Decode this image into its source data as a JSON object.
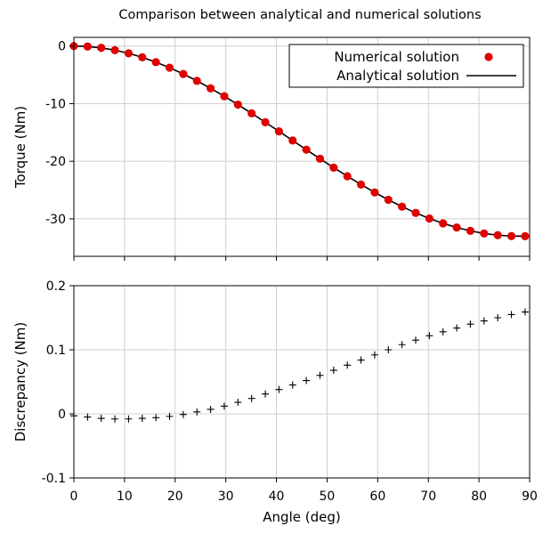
{
  "title": "Comparison between analytical and numerical solutions",
  "colors": {
    "numerical": "#e00000",
    "analytical": "#000000",
    "grid": "#d0d0d0"
  },
  "chart_data": [
    {
      "type": "line",
      "panel": "top",
      "title": "Comparison between analytical and numerical solutions",
      "xlabel": "",
      "ylabel": "Torque (Nm)",
      "xlim": [
        0,
        90
      ],
      "ylim": [
        -36.5,
        1.5
      ],
      "xticks": [
        0,
        10,
        20,
        30,
        40,
        50,
        60,
        70,
        80,
        90
      ],
      "yticks": [
        0,
        -10,
        -20,
        -30
      ],
      "ytick_labels": [
        "0",
        "-10",
        "-20",
        "-30"
      ],
      "grid": true,
      "legend_position": "top-right",
      "series": [
        {
          "name": "Numerical solution",
          "style": "markers",
          "x": [
            0,
            2.7,
            5.4,
            8.1,
            10.8,
            13.5,
            16.2,
            18.9,
            21.6,
            24.3,
            27,
            29.7,
            32.4,
            35.1,
            37.8,
            40.5,
            43.2,
            45.9,
            48.6,
            51.3,
            54,
            56.7,
            59.4,
            62.1,
            64.8,
            67.5,
            70.2,
            72.9,
            75.6,
            78.3,
            81,
            83.7,
            86.4,
            89.1
          ],
          "y": [
            0,
            -0.08,
            -0.32,
            -0.72,
            -1.26,
            -1.96,
            -2.8,
            -3.76,
            -4.85,
            -6.05,
            -7.34,
            -8.72,
            -10.17,
            -11.68,
            -13.23,
            -14.81,
            -16.4,
            -17.99,
            -19.56,
            -21.11,
            -22.6,
            -24.04,
            -25.41,
            -26.69,
            -27.88,
            -28.96,
            -29.93,
            -30.78,
            -31.5,
            -32.08,
            -32.53,
            -32.83,
            -32.99,
            -33.0
          ]
        },
        {
          "name": "Analytical solution",
          "style": "line",
          "x": [
            0,
            2.7,
            5.4,
            8.1,
            10.8,
            13.5,
            16.2,
            18.9,
            21.6,
            24.3,
            27,
            29.7,
            32.4,
            35.1,
            37.8,
            40.5,
            43.2,
            45.9,
            48.6,
            51.3,
            54,
            56.7,
            59.4,
            62.1,
            64.8,
            67.5,
            70.2,
            72.9,
            75.6,
            78.3,
            81,
            83.7,
            86.4,
            89.1
          ],
          "y": [
            0,
            -0.08,
            -0.32,
            -0.72,
            -1.26,
            -1.96,
            -2.8,
            -3.76,
            -4.85,
            -6.05,
            -7.34,
            -8.72,
            -10.17,
            -11.68,
            -13.23,
            -14.81,
            -16.4,
            -17.99,
            -19.56,
            -21.11,
            -22.6,
            -24.04,
            -25.41,
            -26.69,
            -27.88,
            -28.96,
            -29.93,
            -30.78,
            -31.5,
            -32.08,
            -32.53,
            -32.83,
            -32.99,
            -33.0
          ]
        }
      ]
    },
    {
      "type": "scatter",
      "panel": "bottom",
      "xlabel": "Angle (deg)",
      "ylabel": "Discrepancy (Nm)",
      "xlim": [
        0,
        90
      ],
      "ylim": [
        -0.1,
        0.2
      ],
      "xticks": [
        0,
        10,
        20,
        30,
        40,
        50,
        60,
        70,
        80,
        90
      ],
      "yticks": [
        0.2,
        0.1,
        0,
        -0.1
      ],
      "ytick_labels": [
        "0.2",
        "0.1",
        "0",
        "-0.1"
      ],
      "grid": true,
      "series": [
        {
          "style": "plus-markers",
          "x": [
            0,
            2.7,
            5.4,
            8.1,
            10.8,
            13.5,
            16.2,
            18.9,
            21.6,
            24.3,
            27,
            29.7,
            32.4,
            35.1,
            37.8,
            40.5,
            43.2,
            45.9,
            48.6,
            51.3,
            54,
            56.7,
            59.4,
            62.1,
            64.8,
            67.5,
            70.2,
            72.9,
            75.6,
            78.3,
            81,
            83.7,
            86.4,
            89.1
          ],
          "y": [
            -0.003,
            -0.005,
            -0.007,
            -0.008,
            -0.008,
            -0.007,
            -0.006,
            -0.004,
            -0.001,
            0.003,
            0.007,
            0.012,
            0.018,
            0.024,
            0.031,
            0.038,
            0.045,
            0.052,
            0.06,
            0.068,
            0.076,
            0.084,
            0.092,
            0.1,
            0.108,
            0.115,
            0.122,
            0.128,
            0.134,
            0.14,
            0.145,
            0.15,
            0.155,
            0.159
          ]
        }
      ]
    }
  ]
}
